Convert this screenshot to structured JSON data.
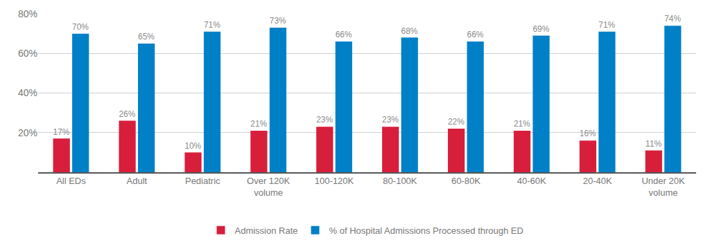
{
  "chart_data": {
    "type": "bar",
    "categories": [
      "All EDs",
      "Adult",
      "Pediatric",
      "Over 120K volume",
      "100-120K",
      "80-100K",
      "60-80K",
      "40-60K",
      "20-40K",
      "Under 20K volume"
    ],
    "series": [
      {
        "name": "Admission Rate",
        "color": "#d71f3c",
        "values": [
          17,
          26,
          10,
          21,
          23,
          23,
          22,
          21,
          16,
          11
        ],
        "value_labels": [
          "17%",
          "26%",
          "10%",
          "21%",
          "23%",
          "23%",
          "22%",
          "21%",
          "16%",
          "11%"
        ]
      },
      {
        "name": "% of Hospital Admissions Processed through ED",
        "color": "#0080c6",
        "values": [
          70,
          65,
          71,
          73,
          66,
          68,
          66,
          69,
          71,
          74
        ],
        "value_labels": [
          "70%",
          "65%",
          "71%",
          "73%",
          "66%",
          "68%",
          "66%",
          "69%",
          "71%",
          "74%"
        ]
      }
    ],
    "ylim": [
      0,
      80
    ],
    "yticks": [
      {
        "value": 20,
        "label": "20%"
      },
      {
        "value": 40,
        "label": "40%"
      },
      {
        "value": 60,
        "label": "60%"
      },
      {
        "value": 80,
        "label": "80%"
      }
    ],
    "grid": true,
    "legend": "bottom",
    "data_labels": true
  }
}
